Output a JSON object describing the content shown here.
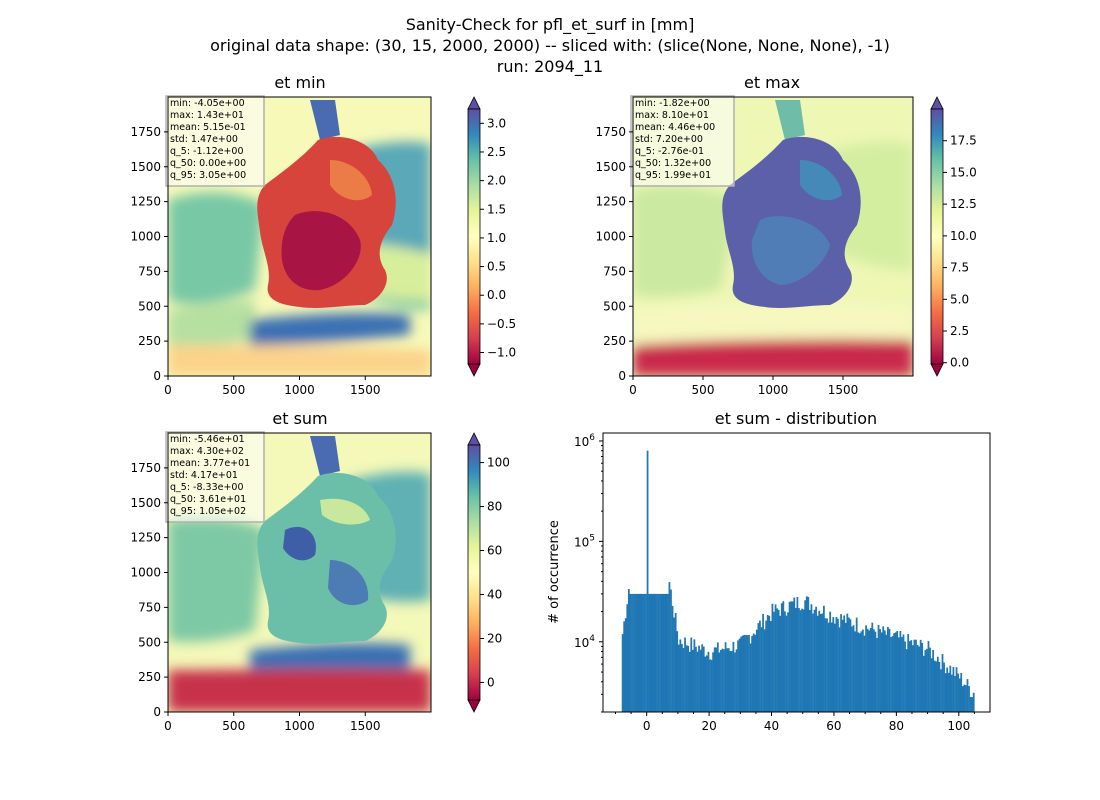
{
  "suptitle": {
    "line1": "Sanity-Check for pfl_et_surf in [mm]",
    "line2": "original data shape: (30, 15, 2000, 2000) -- sliced with: (slice(None, None, None), -1)",
    "line3": "run: 2094_11"
  },
  "chart_data": [
    {
      "type": "heatmap",
      "title": "et min",
      "x_ticks": [
        0,
        500,
        1000,
        1500
      ],
      "y_ticks": [
        0,
        250,
        500,
        750,
        1000,
        1250,
        1500,
        1750
      ],
      "xlim": [
        0,
        2000
      ],
      "ylim": [
        0,
        2000
      ],
      "colormap": "Spectral",
      "color_range": [
        -1.2,
        3.25
      ],
      "colorbar_ticks": [
        -1.0,
        -0.5,
        0.0,
        0.5,
        1.0,
        1.5,
        2.0,
        2.5,
        3.0
      ],
      "colorbar_tick_labels": [
        "−1.0",
        "−0.5",
        "0.0",
        "0.5",
        "1.0",
        "1.5",
        "2.0",
        "2.5",
        "3.0"
      ],
      "stats": [
        "min: -4.05e+00",
        "max: 1.43e+01",
        "mean: 5.15e-01",
        "std: 1.47e+00",
        "q_5: -1.12e+00",
        "q_50: 0.00e+00",
        "q_95: 3.05e+00"
      ]
    },
    {
      "type": "heatmap",
      "title": "et max",
      "x_ticks": [
        0,
        500,
        1000,
        1500
      ],
      "y_ticks": [
        0,
        250,
        500,
        750,
        1000,
        1250,
        1500,
        1750
      ],
      "xlim": [
        0,
        2000
      ],
      "ylim": [
        0,
        2000
      ],
      "colormap": "Spectral",
      "color_range": [
        -0.1,
        20
      ],
      "colorbar_ticks": [
        0.0,
        2.5,
        5.0,
        7.5,
        10.0,
        12.5,
        15.0,
        17.5
      ],
      "colorbar_tick_labels": [
        "0.0",
        "2.5",
        "5.0",
        "7.5",
        "10.0",
        "12.5",
        "15.0",
        "17.5"
      ],
      "stats": [
        "min: -1.82e+00",
        "max: 8.10e+01",
        "mean: 4.46e+00",
        "std: 7.20e+00",
        "q_5: -2.76e-01",
        "q_50: 1.32e+00",
        "q_95: 1.99e+01"
      ]
    },
    {
      "type": "heatmap",
      "title": "et sum",
      "x_ticks": [
        0,
        500,
        1000,
        1500
      ],
      "y_ticks": [
        0,
        250,
        500,
        750,
        1000,
        1250,
        1500,
        1750
      ],
      "xlim": [
        0,
        2000
      ],
      "ylim": [
        0,
        2000
      ],
      "colormap": "Spectral",
      "color_range": [
        -8,
        108
      ],
      "colorbar_ticks": [
        0,
        20,
        40,
        60,
        80,
        100
      ],
      "colorbar_tick_labels": [
        "0",
        "20",
        "40",
        "60",
        "80",
        "100"
      ],
      "stats": [
        "min: -5.46e+01",
        "max: 4.30e+02",
        "mean: 3.77e+01",
        "std: 4.17e+01",
        "q_5: -8.33e+00",
        "q_50: 3.61e+01",
        "q_95: 1.05e+02"
      ]
    },
    {
      "type": "bar",
      "title": "et sum - distribution",
      "ylabel": "# of occurrence",
      "xlabel": "",
      "yscale": "log",
      "xlim": [
        -14,
        110
      ],
      "ylim": [
        2000,
        1200000
      ],
      "x_ticks": [
        0,
        20,
        40,
        60,
        80,
        100
      ],
      "y_ticks": [
        10000,
        100000,
        1000000
      ],
      "y_tick_labels": [
        {
          "base": "10",
          "exp": "4"
        },
        {
          "base": "10",
          "exp": "5"
        },
        {
          "base": "10",
          "exp": "6"
        }
      ],
      "bar_color": "#1f77b4",
      "bins": {
        "x": [
          -8,
          0,
          10,
          20,
          30,
          40,
          50,
          60,
          70,
          80,
          90,
          100,
          105
        ],
        "counts": [
          12000,
          800000,
          10500,
          8000,
          9500,
          20000,
          26000,
          18000,
          14000,
          11000,
          8500,
          4500,
          3000
        ]
      }
    }
  ]
}
